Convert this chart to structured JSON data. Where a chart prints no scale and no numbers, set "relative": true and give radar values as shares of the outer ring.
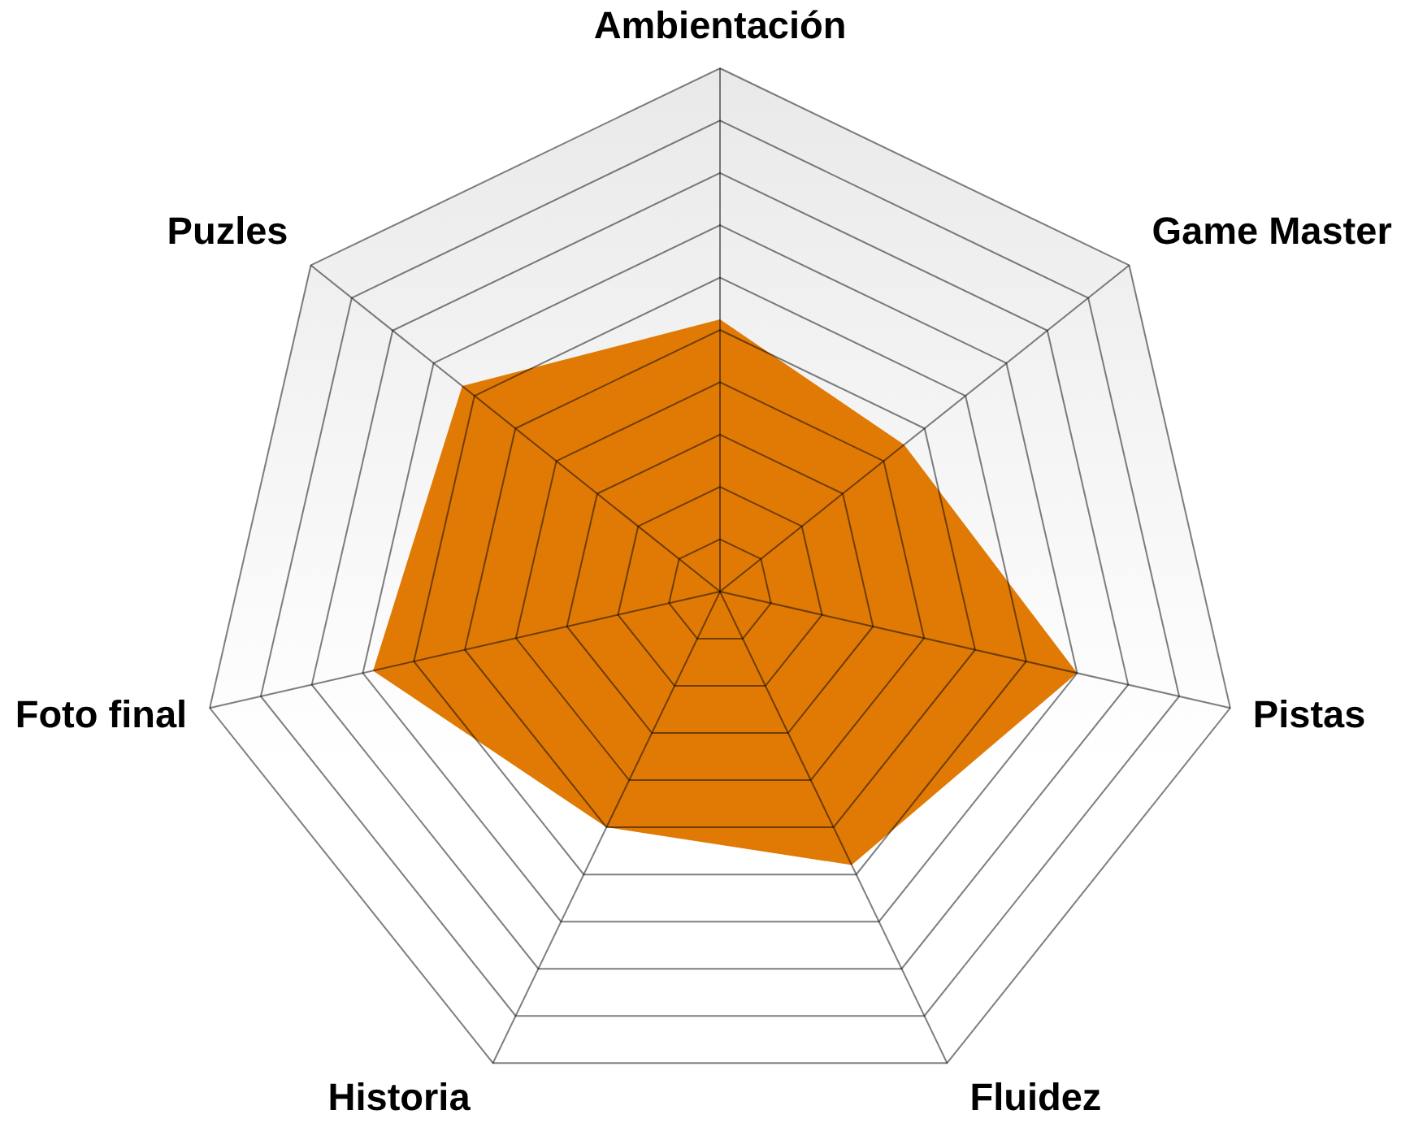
{
  "chart_data": {
    "type": "radar",
    "categories": [
      "Ambientación",
      "Game Master",
      "Pistas",
      "Fluidez",
      "Historia",
      "Foto final",
      "Puzles"
    ],
    "series": [
      {
        "color": "#e07a05",
        "values": [
          0.52,
          0.45,
          0.7,
          0.58,
          0.5,
          0.68,
          0.63
        ]
      }
    ],
    "relative": true,
    "grid": true
  }
}
